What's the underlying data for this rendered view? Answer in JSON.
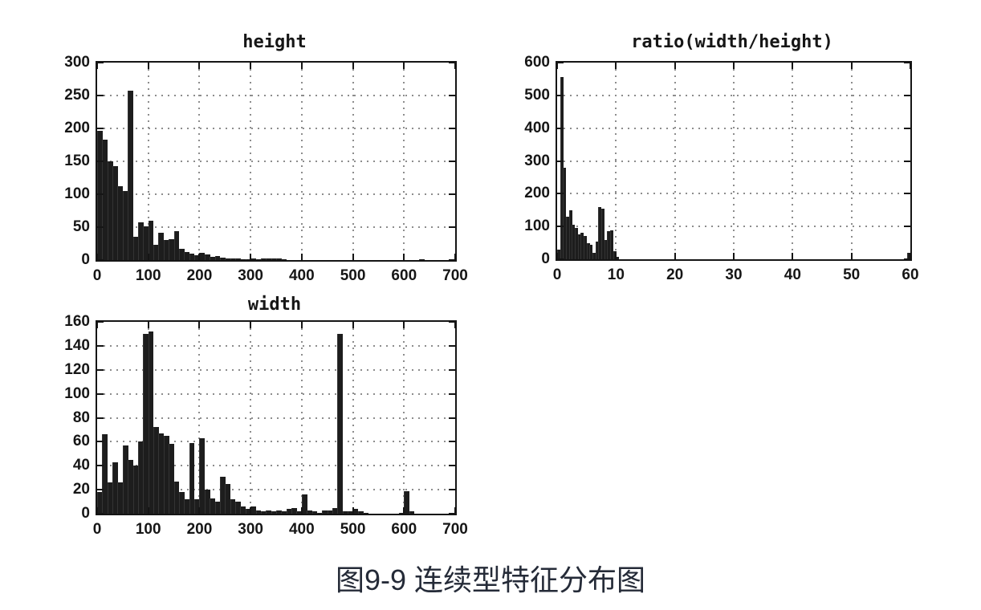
{
  "figure": {
    "caption": "图9-9 连续型特征分布图"
  },
  "chart_data": [
    {
      "type": "bar",
      "title": "height",
      "xlabel": "",
      "ylabel": "",
      "xlim": [
        0,
        700
      ],
      "ylim": [
        0,
        300
      ],
      "x_ticks": [
        0,
        100,
        200,
        300,
        400,
        500,
        600,
        700
      ],
      "y_ticks": [
        0,
        50,
        100,
        150,
        200,
        250,
        300
      ],
      "grid": true,
      "legend": null,
      "bar_color": "#1d1d1d",
      "bin_start": 0,
      "bin_width": 10,
      "values": [
        196,
        183,
        150,
        143,
        112,
        105,
        257,
        35,
        57,
        51,
        60,
        23,
        41,
        30,
        32,
        44,
        17,
        12,
        10,
        7,
        11,
        8,
        5,
        6,
        4,
        3,
        2,
        2,
        1,
        1,
        3,
        1,
        3,
        2,
        3,
        2,
        1,
        0,
        0,
        0,
        0,
        0,
        0,
        0,
        0,
        0,
        0,
        0,
        0,
        0,
        0,
        0,
        0,
        0,
        0,
        0,
        0,
        0,
        0,
        0,
        0,
        0,
        0,
        1,
        0,
        0,
        0,
        0,
        0,
        0
      ]
    },
    {
      "type": "bar",
      "title": "ratio(width/height)",
      "xlabel": "",
      "ylabel": "",
      "xlim": [
        0,
        60
      ],
      "ylim": [
        0,
        600
      ],
      "x_ticks": [
        0,
        10,
        20,
        30,
        40,
        50,
        60
      ],
      "y_ticks": [
        0,
        100,
        200,
        300,
        400,
        500,
        600
      ],
      "grid": true,
      "legend": null,
      "bar_color": "#1d1d1d",
      "bin_start": 0,
      "bin_width": 0.5,
      "values": [
        30,
        555,
        280,
        130,
        150,
        105,
        95,
        75,
        80,
        70,
        50,
        45,
        20,
        55,
        160,
        155,
        60,
        85,
        88,
        25,
        8
      ],
      "extra_bars": [
        {
          "x": 59.4,
          "width": 0.6,
          "value": 20
        }
      ]
    },
    {
      "type": "bar",
      "title": "width",
      "xlabel": "",
      "ylabel": "",
      "xlim": [
        0,
        700
      ],
      "ylim": [
        0,
        160
      ],
      "x_ticks": [
        0,
        100,
        200,
        300,
        400,
        500,
        600,
        700
      ],
      "y_ticks": [
        0,
        20,
        40,
        60,
        80,
        100,
        120,
        140,
        160
      ],
      "grid": true,
      "legend": null,
      "bar_color": "#1d1d1d",
      "bin_start": 0,
      "bin_width": 10,
      "values": [
        18,
        66,
        26,
        43,
        26,
        57,
        45,
        40,
        60,
        150,
        152,
        72,
        67,
        65,
        58,
        27,
        18,
        12,
        59,
        12,
        63,
        20,
        13,
        10,
        31,
        25,
        12,
        10,
        6,
        4,
        6,
        3,
        2,
        3,
        2,
        3,
        2,
        4,
        5,
        2,
        16,
        3,
        2,
        1,
        3,
        3,
        5,
        150,
        2,
        2,
        4,
        2,
        1,
        0,
        0,
        0,
        0,
        0,
        0,
        1,
        19,
        2,
        0,
        0,
        0,
        0,
        0,
        0,
        0,
        0
      ]
    }
  ]
}
